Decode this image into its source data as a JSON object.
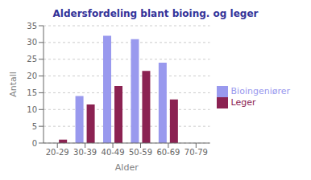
{
  "chart_data": {
    "type": "bar",
    "title": "Aldersfordeling blant bioing. og leger",
    "xlabel": "Alder",
    "ylabel": "Antall",
    "categories": [
      "20-29",
      "30-39",
      "40-49",
      "50-59",
      "60-69",
      "70-79"
    ],
    "series": [
      {
        "name": "Bioingeniører",
        "color": "#9999ee",
        "values": [
          0,
          14,
          32,
          31,
          24,
          0
        ]
      },
      {
        "name": "Leger",
        "color": "#8B2252",
        "values": [
          1,
          11.5,
          17,
          21.5,
          13,
          0
        ]
      }
    ],
    "ylim": [
      0,
      35
    ],
    "yticks": [
      0,
      5,
      10,
      15,
      20,
      25,
      30,
      35
    ],
    "grid": true,
    "legend": "right"
  }
}
